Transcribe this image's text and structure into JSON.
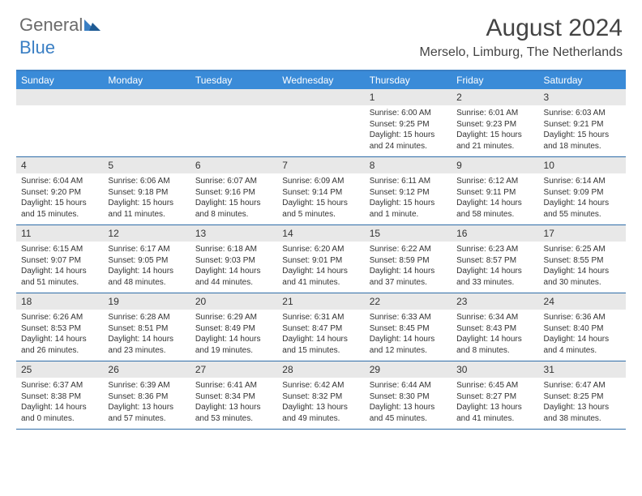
{
  "logo": {
    "part1": "General",
    "part2": "Blue"
  },
  "title": "August 2024",
  "location": "Merselo, Limburg, The Netherlands",
  "weekdays": [
    "Sunday",
    "Monday",
    "Tuesday",
    "Wednesday",
    "Thursday",
    "Friday",
    "Saturday"
  ],
  "colors": {
    "header_bar": "#3a8bd8",
    "rule": "#2f6da8",
    "date_row_bg": "#e8e8e8",
    "text": "#333333",
    "logo_gray": "#6b6b6b",
    "logo_blue": "#3a7fc4"
  },
  "weeks": [
    {
      "nums": [
        "",
        "",
        "",
        "",
        "1",
        "2",
        "3"
      ],
      "details": [
        null,
        null,
        null,
        null,
        {
          "sunrise": "Sunrise: 6:00 AM",
          "sunset": "Sunset: 9:25 PM",
          "daylight": "Daylight: 15 hours and 24 minutes."
        },
        {
          "sunrise": "Sunrise: 6:01 AM",
          "sunset": "Sunset: 9:23 PM",
          "daylight": "Daylight: 15 hours and 21 minutes."
        },
        {
          "sunrise": "Sunrise: 6:03 AM",
          "sunset": "Sunset: 9:21 PM",
          "daylight": "Daylight: 15 hours and 18 minutes."
        }
      ]
    },
    {
      "nums": [
        "4",
        "5",
        "6",
        "7",
        "8",
        "9",
        "10"
      ],
      "details": [
        {
          "sunrise": "Sunrise: 6:04 AM",
          "sunset": "Sunset: 9:20 PM",
          "daylight": "Daylight: 15 hours and 15 minutes."
        },
        {
          "sunrise": "Sunrise: 6:06 AM",
          "sunset": "Sunset: 9:18 PM",
          "daylight": "Daylight: 15 hours and 11 minutes."
        },
        {
          "sunrise": "Sunrise: 6:07 AM",
          "sunset": "Sunset: 9:16 PM",
          "daylight": "Daylight: 15 hours and 8 minutes."
        },
        {
          "sunrise": "Sunrise: 6:09 AM",
          "sunset": "Sunset: 9:14 PM",
          "daylight": "Daylight: 15 hours and 5 minutes."
        },
        {
          "sunrise": "Sunrise: 6:11 AM",
          "sunset": "Sunset: 9:12 PM",
          "daylight": "Daylight: 15 hours and 1 minute."
        },
        {
          "sunrise": "Sunrise: 6:12 AM",
          "sunset": "Sunset: 9:11 PM",
          "daylight": "Daylight: 14 hours and 58 minutes."
        },
        {
          "sunrise": "Sunrise: 6:14 AM",
          "sunset": "Sunset: 9:09 PM",
          "daylight": "Daylight: 14 hours and 55 minutes."
        }
      ]
    },
    {
      "nums": [
        "11",
        "12",
        "13",
        "14",
        "15",
        "16",
        "17"
      ],
      "details": [
        {
          "sunrise": "Sunrise: 6:15 AM",
          "sunset": "Sunset: 9:07 PM",
          "daylight": "Daylight: 14 hours and 51 minutes."
        },
        {
          "sunrise": "Sunrise: 6:17 AM",
          "sunset": "Sunset: 9:05 PM",
          "daylight": "Daylight: 14 hours and 48 minutes."
        },
        {
          "sunrise": "Sunrise: 6:18 AM",
          "sunset": "Sunset: 9:03 PM",
          "daylight": "Daylight: 14 hours and 44 minutes."
        },
        {
          "sunrise": "Sunrise: 6:20 AM",
          "sunset": "Sunset: 9:01 PM",
          "daylight": "Daylight: 14 hours and 41 minutes."
        },
        {
          "sunrise": "Sunrise: 6:22 AM",
          "sunset": "Sunset: 8:59 PM",
          "daylight": "Daylight: 14 hours and 37 minutes."
        },
        {
          "sunrise": "Sunrise: 6:23 AM",
          "sunset": "Sunset: 8:57 PM",
          "daylight": "Daylight: 14 hours and 33 minutes."
        },
        {
          "sunrise": "Sunrise: 6:25 AM",
          "sunset": "Sunset: 8:55 PM",
          "daylight": "Daylight: 14 hours and 30 minutes."
        }
      ]
    },
    {
      "nums": [
        "18",
        "19",
        "20",
        "21",
        "22",
        "23",
        "24"
      ],
      "details": [
        {
          "sunrise": "Sunrise: 6:26 AM",
          "sunset": "Sunset: 8:53 PM",
          "daylight": "Daylight: 14 hours and 26 minutes."
        },
        {
          "sunrise": "Sunrise: 6:28 AM",
          "sunset": "Sunset: 8:51 PM",
          "daylight": "Daylight: 14 hours and 23 minutes."
        },
        {
          "sunrise": "Sunrise: 6:29 AM",
          "sunset": "Sunset: 8:49 PM",
          "daylight": "Daylight: 14 hours and 19 minutes."
        },
        {
          "sunrise": "Sunrise: 6:31 AM",
          "sunset": "Sunset: 8:47 PM",
          "daylight": "Daylight: 14 hours and 15 minutes."
        },
        {
          "sunrise": "Sunrise: 6:33 AM",
          "sunset": "Sunset: 8:45 PM",
          "daylight": "Daylight: 14 hours and 12 minutes."
        },
        {
          "sunrise": "Sunrise: 6:34 AM",
          "sunset": "Sunset: 8:43 PM",
          "daylight": "Daylight: 14 hours and 8 minutes."
        },
        {
          "sunrise": "Sunrise: 6:36 AM",
          "sunset": "Sunset: 8:40 PM",
          "daylight": "Daylight: 14 hours and 4 minutes."
        }
      ]
    },
    {
      "nums": [
        "25",
        "26",
        "27",
        "28",
        "29",
        "30",
        "31"
      ],
      "details": [
        {
          "sunrise": "Sunrise: 6:37 AM",
          "sunset": "Sunset: 8:38 PM",
          "daylight": "Daylight: 14 hours and 0 minutes."
        },
        {
          "sunrise": "Sunrise: 6:39 AM",
          "sunset": "Sunset: 8:36 PM",
          "daylight": "Daylight: 13 hours and 57 minutes."
        },
        {
          "sunrise": "Sunrise: 6:41 AM",
          "sunset": "Sunset: 8:34 PM",
          "daylight": "Daylight: 13 hours and 53 minutes."
        },
        {
          "sunrise": "Sunrise: 6:42 AM",
          "sunset": "Sunset: 8:32 PM",
          "daylight": "Daylight: 13 hours and 49 minutes."
        },
        {
          "sunrise": "Sunrise: 6:44 AM",
          "sunset": "Sunset: 8:30 PM",
          "daylight": "Daylight: 13 hours and 45 minutes."
        },
        {
          "sunrise": "Sunrise: 6:45 AM",
          "sunset": "Sunset: 8:27 PM",
          "daylight": "Daylight: 13 hours and 41 minutes."
        },
        {
          "sunrise": "Sunrise: 6:47 AM",
          "sunset": "Sunset: 8:25 PM",
          "daylight": "Daylight: 13 hours and 38 minutes."
        }
      ]
    }
  ]
}
